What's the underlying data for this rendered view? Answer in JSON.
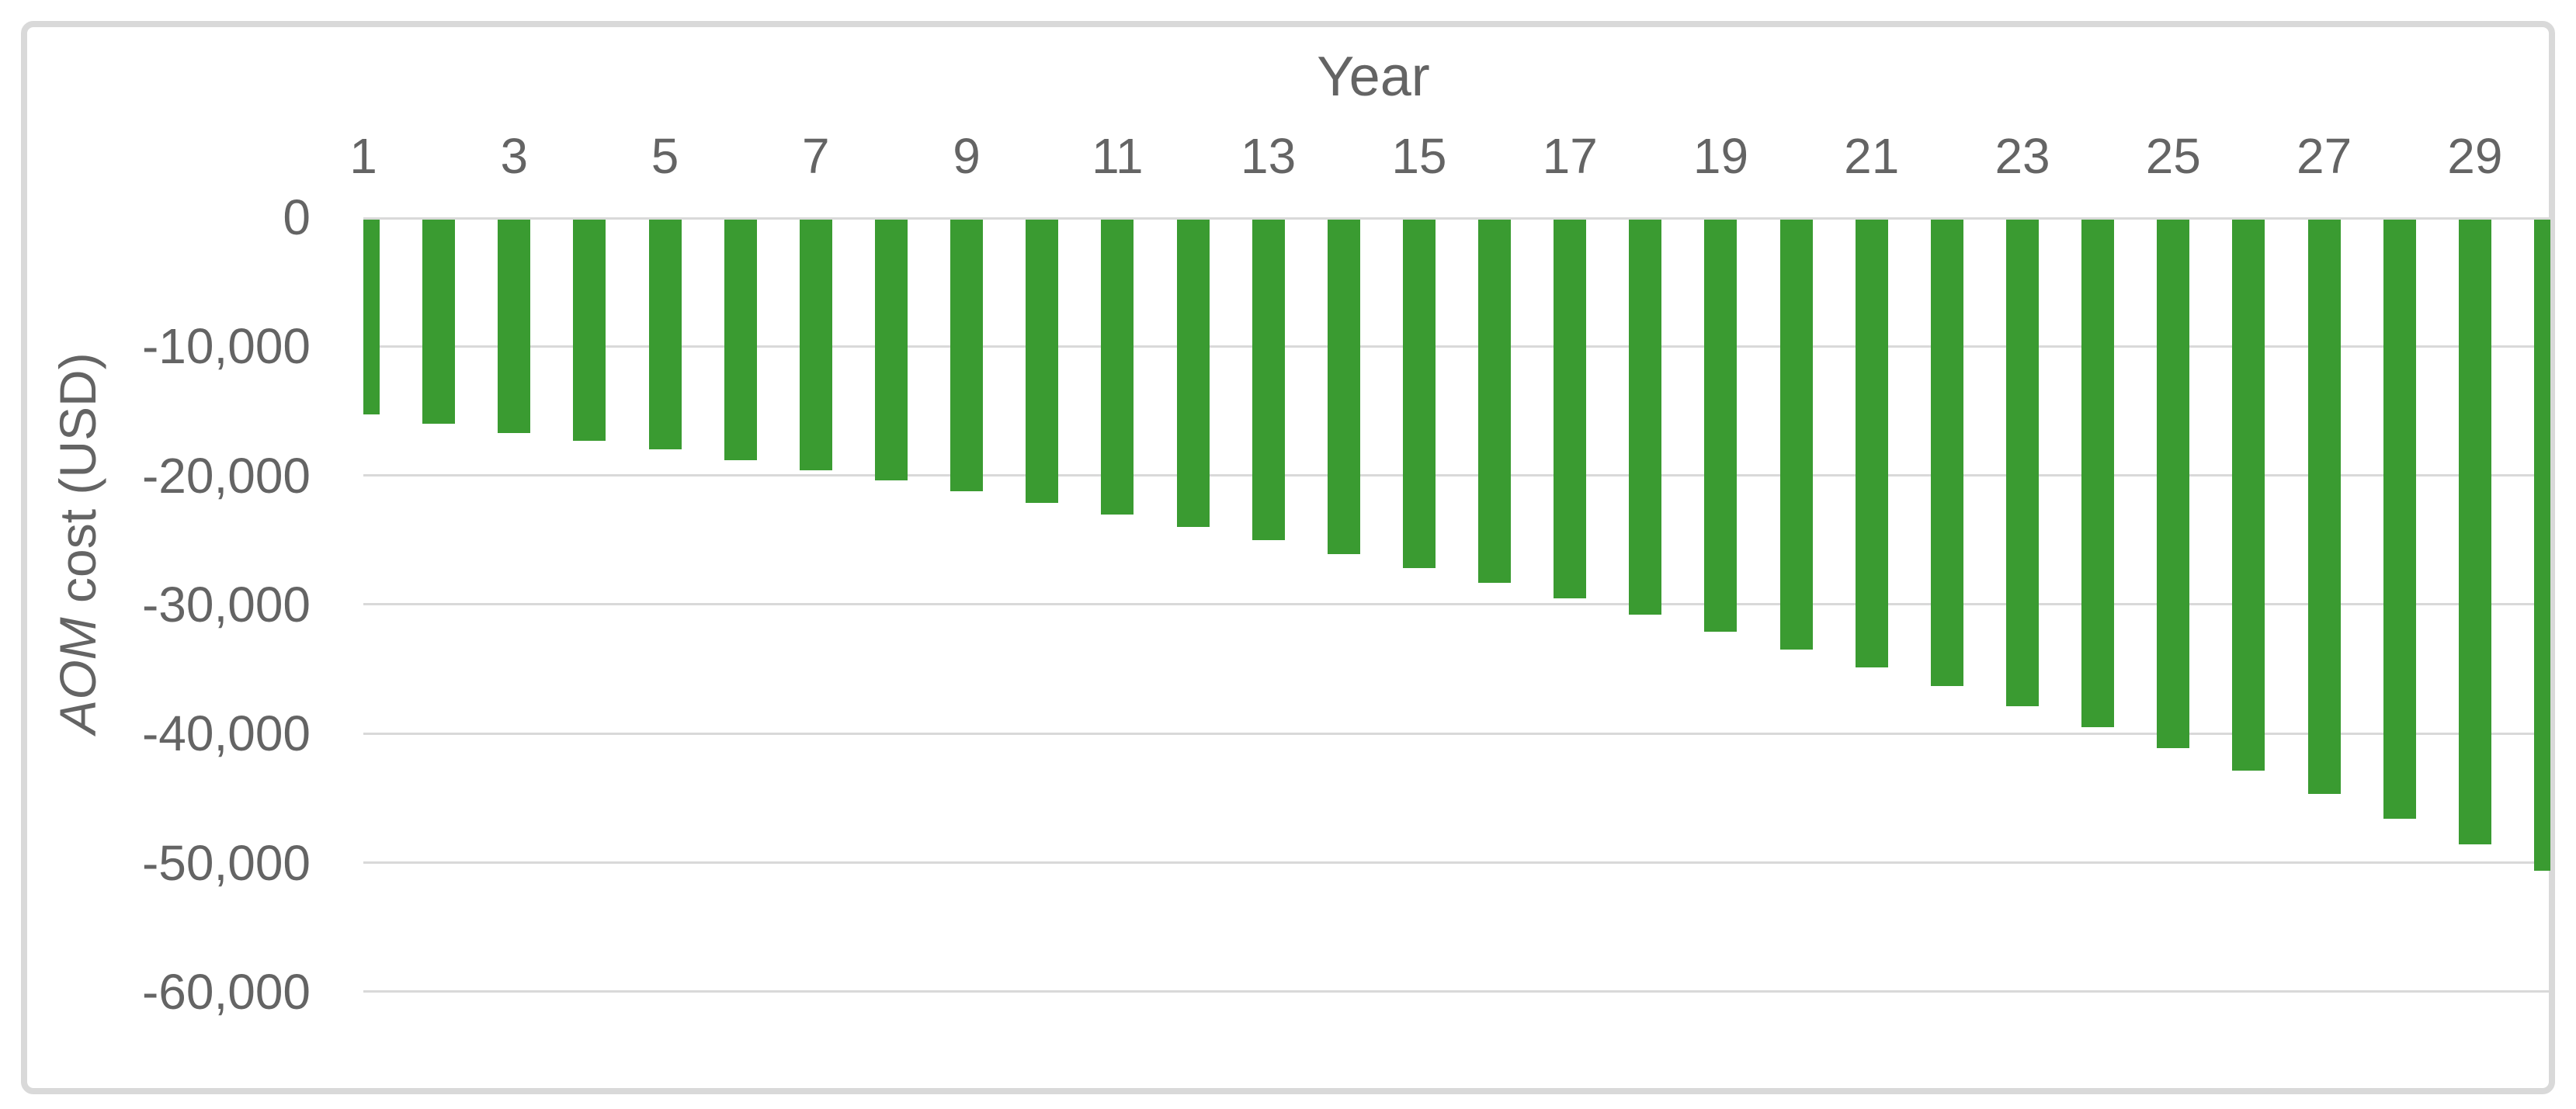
{
  "chart_data": {
    "type": "bar",
    "title": "Year",
    "ylabel_italic": "AOM",
    "ylabel_rest": " cost (USD)",
    "categories": [
      1,
      2,
      3,
      4,
      5,
      6,
      7,
      8,
      9,
      10,
      11,
      12,
      13,
      14,
      15,
      16,
      17,
      18,
      19,
      20,
      21,
      22,
      23,
      24,
      25,
      26,
      27,
      28,
      29,
      30
    ],
    "values": [
      -15300,
      -16000,
      -16700,
      -17300,
      -18000,
      -18800,
      -19600,
      -20400,
      -21200,
      -22100,
      -23000,
      -24000,
      -25000,
      -26100,
      -27200,
      -28300,
      -29500,
      -30800,
      -32100,
      -33500,
      -34900,
      -36300,
      -37900,
      -39500,
      -41100,
      -42900,
      -44700,
      -46600,
      -48600,
      -50600
    ],
    "x_tick_years": [
      1,
      3,
      5,
      7,
      9,
      11,
      13,
      15,
      17,
      19,
      21,
      23,
      25,
      27,
      29
    ],
    "y_ticks": [
      {
        "label": "0",
        "value": 0
      },
      {
        "label": "-10,000",
        "value": -10000
      },
      {
        "label": "-20,000",
        "value": -20000
      },
      {
        "label": "-30,000",
        "value": -30000
      },
      {
        "label": "-40,000",
        "value": -40000
      },
      {
        "label": "-50,000",
        "value": -50000
      },
      {
        "label": "-60,000",
        "value": -60000
      }
    ],
    "ylim": [
      -65000,
      0
    ],
    "xlabel": "Year",
    "ylabel": "AOM cost (USD)",
    "grid": "horizontal",
    "legend": "none",
    "x_axis_labels_position": "top",
    "bar_gap_ratio": "narrow bars, wide gaps; first and last bars half-clipped at plot edges",
    "colors": {
      "bar": "#3A9B31",
      "grid": "#D9D9D9",
      "frame": "#D9D9D9",
      "text": "#646464",
      "background": "#FFFFFF"
    }
  }
}
